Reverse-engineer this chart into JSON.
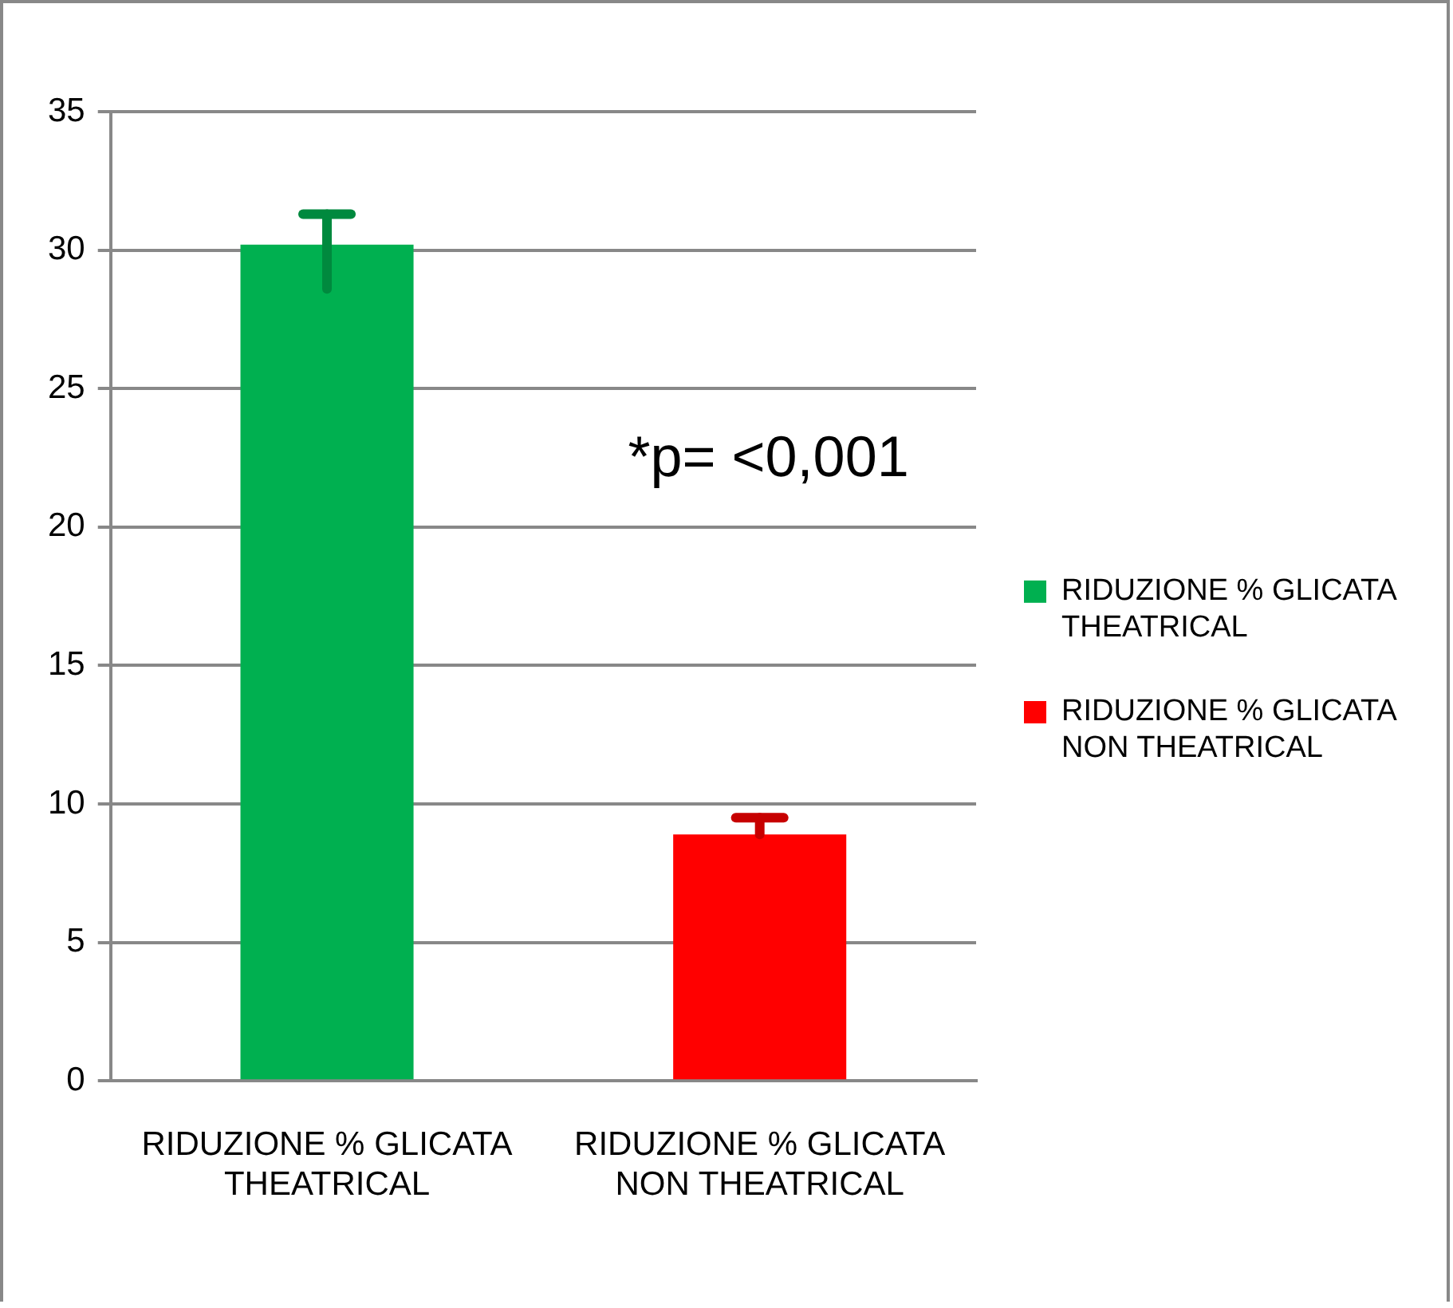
{
  "chart_data": {
    "type": "bar",
    "categories": [
      "RIDUZIONE % GLICATA THEATRICAL",
      "RIDUZIONE % GLICATA NON THEATRICAL"
    ],
    "series": [
      {
        "name": "RIDUZIONE % GLICATA THEATRICAL",
        "color": "#00b050",
        "values": [
          30.2,
          null
        ],
        "errors": [
          [
            28.6,
            31.3
          ],
          null
        ]
      },
      {
        "name": "RIDUZIONE % GLICATA NON THEATRICAL",
        "color": "#ff0000",
        "values": [
          null,
          8.9
        ],
        "errors": [
          null,
          [
            8.9,
            9.5
          ]
        ]
      }
    ],
    "ylim": [
      0,
      35
    ],
    "yticks": [
      0,
      5,
      10,
      15,
      20,
      25,
      30,
      35
    ],
    "grid": "y",
    "legend": "right",
    "annotations": [
      "*p= <0,001"
    ]
  }
}
